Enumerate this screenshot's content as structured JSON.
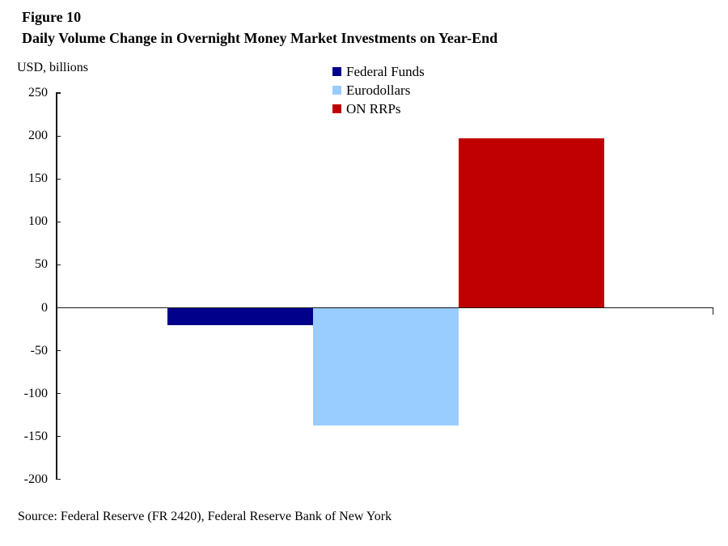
{
  "figure": {
    "label": "Figure 10",
    "title": "Daily Volume Change in Overnight Money Market Investments on Year-End",
    "axis_unit_label": "USD, billions",
    "source": "Source: Federal Reserve (FR 2420), Federal Reserve Bank of New York"
  },
  "legend": {
    "items": [
      {
        "label": "Federal Funds",
        "color": "#00008B"
      },
      {
        "label": "Eurodollars",
        "color": "#99CCFF"
      },
      {
        "label": "ON RRPs",
        "color": "#C00000"
      }
    ]
  },
  "chart_data": {
    "type": "bar",
    "title": "Daily Volume Change in Overnight Money Market Investments on Year-End",
    "categories": [
      "Federal Funds",
      "Eurodollars",
      "ON RRPs"
    ],
    "values": [
      -20,
      -137,
      197
    ],
    "colors": [
      "#00008B",
      "#99CCFF",
      "#C00000"
    ],
    "xlabel": "",
    "ylabel": "USD, billions",
    "ylim": [
      -200,
      250
    ],
    "yticks": [
      250,
      200,
      150,
      100,
      50,
      0,
      -50,
      -100,
      -150,
      -200
    ],
    "grid": false,
    "legend_position": "top-center",
    "axis_color": "#1a1a1a"
  }
}
